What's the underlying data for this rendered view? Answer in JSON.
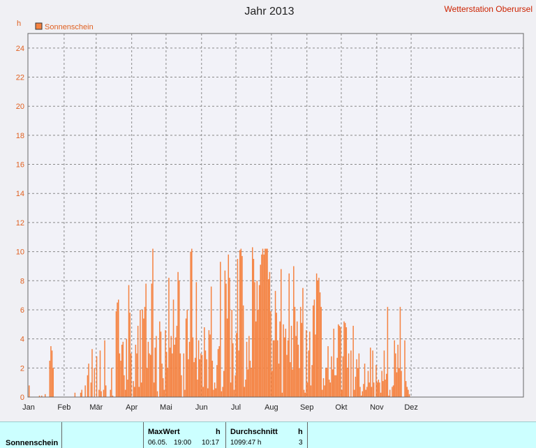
{
  "header": {
    "title": "Jahr 2013",
    "station": "Wetterstation Oberursel",
    "unit": "h"
  },
  "legend": {
    "label": "Sonnenschein",
    "color": "#f58240"
  },
  "chart_data": {
    "type": "bar",
    "title": "Jahr 2013",
    "xlabel": "",
    "ylabel": "h",
    "ylim": [
      0,
      25
    ],
    "yticks": [
      0,
      2,
      4,
      6,
      8,
      10,
      12,
      14,
      16,
      18,
      20,
      22,
      24
    ],
    "months": [
      "Jan",
      "Feb",
      "Mär",
      "Apr",
      "Mai",
      "Jun",
      "Jul",
      "Aug",
      "Sep",
      "Okt",
      "Nov",
      "Dez"
    ],
    "grid": true,
    "legend_position": "top-left",
    "series": [
      {
        "name": "Sonnenschein",
        "color": "#f58240",
        "x_start": "2013-01-01",
        "values": [
          0.8,
          0,
          0,
          0,
          0,
          0,
          0,
          0,
          0,
          0.1,
          0,
          0.1,
          0,
          0,
          0.2,
          0,
          0,
          0,
          2.5,
          3.5,
          3.2,
          2.0,
          0,
          0,
          0,
          0,
          0,
          0,
          0,
          0,
          0,
          0,
          0,
          0,
          0,
          0,
          0,
          0,
          0,
          0,
          0.3,
          0,
          0,
          0,
          0,
          0.3,
          0.5,
          0,
          0,
          0.8,
          0,
          1.5,
          2.3,
          0,
          1.0,
          3.3,
          0,
          2.0,
          0,
          2.8,
          0,
          0.5,
          3.2,
          0.4,
          0,
          0.5,
          3.9,
          0.8,
          0,
          0,
          0,
          0.5,
          2.0,
          0.1,
          0,
          0,
          5.9,
          6.5,
          6.7,
          3.0,
          2.5,
          3.6,
          3.8,
          1.5,
          0.5,
          4.0,
          1.2,
          7.7,
          5.8,
          3.0,
          0,
          1.1,
          0.7,
          3.6,
          3.0,
          4.9,
          0.7,
          6.0,
          1.0,
          6.0,
          5.4,
          6.2,
          7.8,
          2.0,
          3.8,
          3.0,
          2.9,
          7.8,
          10.2,
          1.0,
          3.4,
          4.2,
          0.4,
          0,
          5.2,
          4.5,
          2.3,
          1.3,
          0.5,
          4.6,
          3.1,
          2.0,
          8.2,
          3.4,
          4.2,
          3.0,
          6.7,
          3.6,
          4.1,
          4.9,
          8.6,
          8.0,
          3.0,
          1.5,
          0,
          3.0,
          0.5,
          5.4,
          6.0,
          2.6,
          3.8,
          10.0,
          10.2,
          4.1,
          2.4,
          2.7,
          7.9,
          1.2,
          3.9,
          2.6,
          3.0,
          2.9,
          0.7,
          4.8,
          3.2,
          2.6,
          0.6,
          4.6,
          4.3,
          7.6,
          2.5,
          0.5,
          1.0,
          0.6,
          2.2,
          3.3,
          3.5,
          9.3,
          0.4,
          0.7,
          1.8,
          8.7,
          7.8,
          5.4,
          9.8,
          8.2,
          1.0,
          6.0,
          3.7,
          0.5,
          1.5,
          4.4,
          9.5,
          3.2,
          10.1,
          10.2,
          9.7,
          6.3,
          0.7,
          1.2,
          3.8,
          1.9,
          4.2,
          2.5,
          2.0,
          10.3,
          9.5,
          7.9,
          5.2,
          8.0,
          6.0,
          7.7,
          9.1,
          9.8,
          10.2,
          9.8,
          10.2,
          10.2,
          10.2,
          8.1,
          8.6,
          5.9,
          1.8,
          3.9,
          3.9,
          7.3,
          5.8,
          3.9,
          2.3,
          5.2,
          8.8,
          0.3,
          5.0,
          4.1,
          4.7,
          2.9,
          3.9,
          8.5,
          2.4,
          4.9,
          1.9,
          9.0,
          6.2,
          4.2,
          5.2,
          3.6,
          2.0,
          6.2,
          5.1,
          7.5,
          0.5,
          0.3,
          4.6,
          1.0,
          3.2,
          4.5,
          0.8,
          2.2,
          6.3,
          6.7,
          4.3,
          8.5,
          8.0,
          8.2,
          7.2,
          6.2,
          0.5,
          1.3,
          0.8,
          2.0,
          2.0,
          3.5,
          1.2,
          1.0,
          2.8,
          1.9,
          4.7,
          1.5,
          1.5,
          2.7,
          5.0,
          4.9,
          4.8,
          0.5,
          2.8,
          5.2,
          5.1,
          4.8,
          2.0,
          3.0,
          0,
          3.2,
          0,
          4.9,
          0.5,
          1.4,
          2.6,
          2.0,
          3.0,
          0.7,
          0.1,
          0.4,
          0.9,
          2.3,
          0.5,
          0.7,
          1.8,
          1.0,
          3.4,
          0.7,
          3.2,
          1.0,
          0,
          2.2,
          1.0,
          1.2,
          1.0,
          0.3,
          1.8,
          1.1,
          3.2,
          1.2,
          1.6,
          6.2,
          0.1,
          0.5,
          0,
          0.7,
          0.8,
          3.9,
          3.0,
          1.7,
          3.6,
          2.0,
          6.2,
          1.8,
          0,
          0,
          3.9,
          1.1,
          0.7,
          0.5,
          0.2,
          0,
          0,
          0,
          0,
          0,
          0,
          0,
          0,
          0,
          0,
          0,
          0,
          0,
          0,
          0,
          0,
          0,
          0,
          0,
          0,
          0,
          0,
          0,
          0,
          0,
          0,
          0,
          0,
          0,
          0,
          0,
          0,
          0,
          0,
          0,
          0,
          0,
          0
        ]
      }
    ]
  },
  "stats": {
    "row_label": "Sonnenschein",
    "max_header": "MaxWert",
    "max_unit": "h",
    "max_date": "06.05.",
    "max_time": "19:00",
    "max_value": "10:17",
    "avg_header": "Durchschnitt",
    "avg_unit": "h",
    "avg_total": "1099:47 h",
    "avg_value": "3"
  }
}
